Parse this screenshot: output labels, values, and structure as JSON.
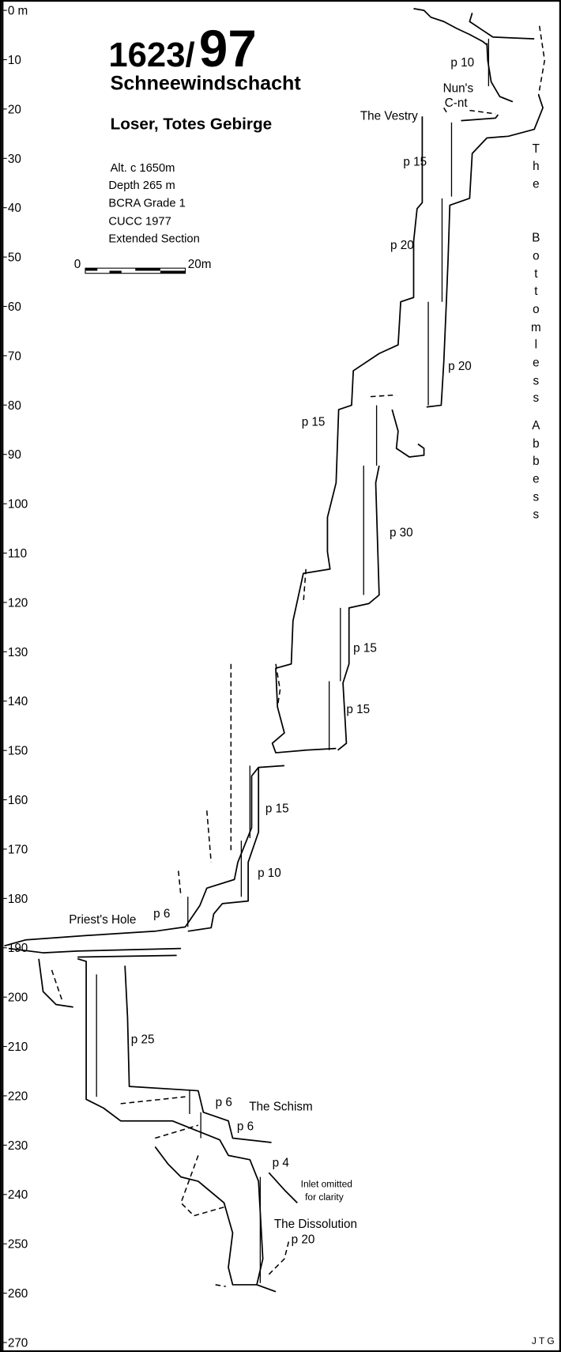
{
  "title": {
    "number_prefix": "1623/",
    "number_main": "97",
    "name": "Schneewindschacht",
    "location": "Loser, Totes Gebirge"
  },
  "info_lines": [
    "Alt. c 1650m",
    "Depth 265 m",
    "BCRA Grade 1",
    "CUCC 1977",
    "Extended Section"
  ],
  "scale_bar": {
    "start": "0",
    "end": "20m"
  },
  "depth_axis": {
    "ticks": [
      "0 m",
      "10",
      "20",
      "30",
      "40",
      "50",
      "60",
      "70",
      "80",
      "90",
      "100",
      "110",
      "120",
      "130",
      "140",
      "150",
      "160",
      "170",
      "180",
      "190",
      "200",
      "210",
      "220",
      "230",
      "240",
      "250",
      "260",
      "270"
    ]
  },
  "side_label": {
    "text": "The Bottomless Abbess",
    "letters": [
      "T",
      "h",
      "e",
      "B",
      "o",
      "t",
      "t",
      "o",
      "m",
      "l",
      "e",
      "s",
      "s",
      "A",
      "b",
      "b",
      "e",
      "s",
      "s"
    ]
  },
  "labels": {
    "p10_top": "p 10",
    "nuns1": "Nun's",
    "nuns2": "C-nt",
    "vestry": "The Vestry",
    "p15_a": "p 15",
    "p20_a": "p 20",
    "p20_b": "p 20",
    "p15_b": "p 15",
    "p30": "p 30",
    "p15_c": "p 15",
    "p15_d": "p 15",
    "p15_e": "p 15",
    "p10_b": "p 10",
    "p6_a": "p 6",
    "priests": "Priest's Hole",
    "p25": "p 25",
    "p6_b": "p 6",
    "schism": "The Schism",
    "p6_c": "p 6",
    "p4": "p 4",
    "inlet1": "Inlet omitted",
    "inlet2": "for clarity",
    "dissolution": "The Dissolution",
    "p20_c": "p 20",
    "author": "J T G"
  }
}
